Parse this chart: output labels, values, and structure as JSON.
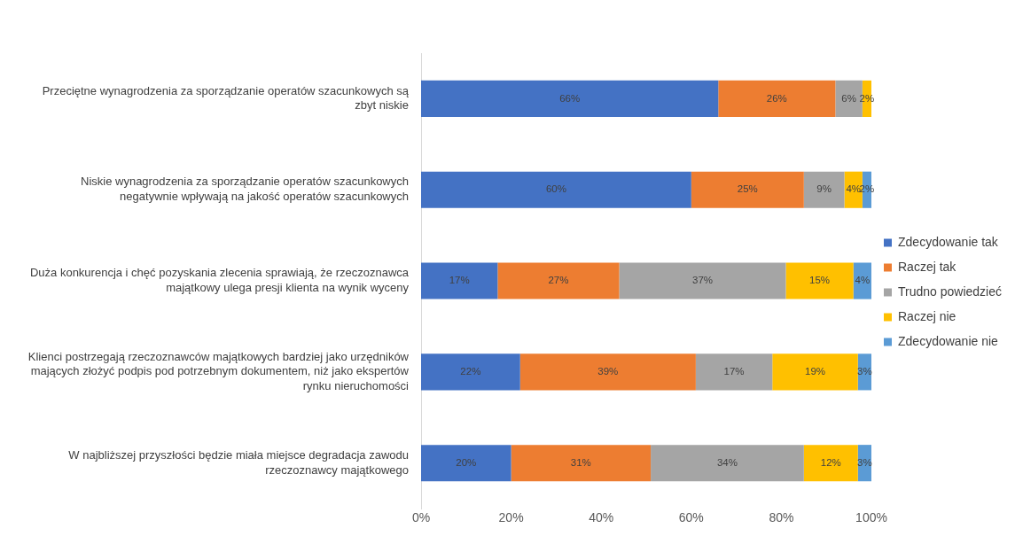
{
  "chart_data": {
    "type": "bar",
    "orientation": "horizontal",
    "stacked": true,
    "categories": [
      "Przeciętne wynagrodzenia za sporządzanie operatów szacunkowych są zbyt niskie",
      "Niskie wynagrodzenia za sporządzanie operatów szacunkowych negatywnie wpływają na jakość operatów szacunkowych",
      "Duża konkurencja i chęć pozyskania zlecenia sprawiają, że rzeczoznawca majątkowy ulega presji klienta na wynik wyceny",
      "Klienci postrzegają rzeczoznawców majątkowych bardziej jako urzędników mających złożyć podpis pod potrzebnym dokumentem, niż jako ekspertów rynku nieruchomości",
      "W najbliższej przyszłości będzie miała miejsce degradacja zawodu rzeczoznawcy majątkowego"
    ],
    "series": [
      {
        "name": "Zdecydowanie tak",
        "color": "#4472c4",
        "values": [
          66,
          60,
          17,
          22,
          20
        ],
        "value_labels": [
          "66%",
          "60%",
          "17%",
          "22%",
          "20%"
        ]
      },
      {
        "name": "Raczej tak",
        "color": "#ed7d31",
        "values": [
          26,
          25,
          27,
          39,
          31
        ],
        "value_labels": [
          "26%",
          "25%",
          "27%",
          "39%",
          "31%"
        ]
      },
      {
        "name": "Trudno powiedzieć",
        "color": "#a5a5a5",
        "values": [
          6,
          9,
          37,
          17,
          34
        ],
        "value_labels": [
          "6%",
          "9%",
          "37%",
          "17%",
          "34%"
        ]
      },
      {
        "name": "Raczej nie",
        "color": "#ffc000",
        "values": [
          2,
          4,
          15,
          19,
          12
        ],
        "value_labels": [
          "2%",
          "4%",
          "15%",
          "19%",
          "12%"
        ]
      },
      {
        "name": "Zdecydowanie nie",
        "color": "#5b9bd5",
        "values": [
          null,
          2,
          4,
          3,
          3
        ],
        "value_labels": [
          null,
          "2%",
          "4%",
          "3%",
          "3%"
        ]
      }
    ],
    "xlim": [
      0,
      100
    ],
    "xticks": [
      {
        "value": 0,
        "label": "0%"
      },
      {
        "value": 20,
        "label": "20%"
      },
      {
        "value": 40,
        "label": "40%"
      },
      {
        "value": 60,
        "label": "60%"
      },
      {
        "value": 80,
        "label": "80%"
      },
      {
        "value": 100,
        "label": "100%"
      }
    ],
    "grid": false,
    "legend": "right"
  }
}
